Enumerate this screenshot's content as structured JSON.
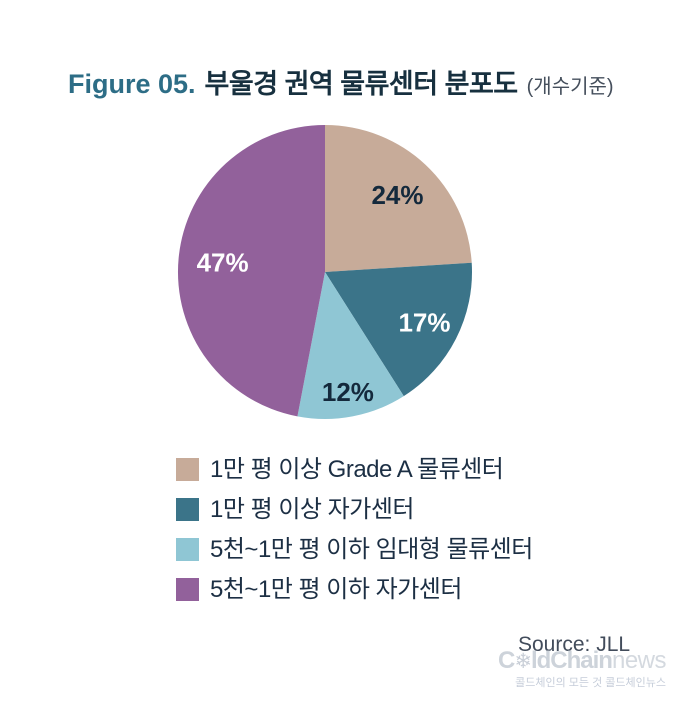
{
  "header": {
    "figure_label": "Figure 05.",
    "title": "부울경 권역 물류센터 분포도",
    "subtitle": "(개수기준)"
  },
  "chart_data": {
    "type": "pie",
    "title": "부울경 권역 물류센터 분포도 (개수기준)",
    "unit": "percent",
    "start_angle_deg": 0,
    "direction": "clockwise",
    "legend_position": "bottom",
    "slices": [
      {
        "label": "1만 평 이상 Grade A 물류센터",
        "value": 24,
        "display": "24%",
        "color": "#C7AB99",
        "label_color": "#14293C"
      },
      {
        "label": "1만 평 이상 자가센터",
        "value": 17,
        "display": "17%",
        "color": "#3B7489",
        "label_color": "#FFFFFF"
      },
      {
        "label": "5천~1만 평 이하 임대형 물류센터",
        "value": 12,
        "display": "12%",
        "color": "#8FC6D4",
        "label_color": "#14293C"
      },
      {
        "label": "5천~1만 평 이하 자가센터",
        "value": 47,
        "display": "47%",
        "color": "#92619B",
        "label_color": "#FFFFFF"
      }
    ]
  },
  "footer": {
    "source": "Source: JLL",
    "watermark": {
      "brand_start": "C",
      "snowflake": "❄",
      "brand_mid": "ldChain",
      "brand_suffix": "news",
      "tagline": "콜드체인의 모든 것 콜드체인뉴스"
    }
  }
}
